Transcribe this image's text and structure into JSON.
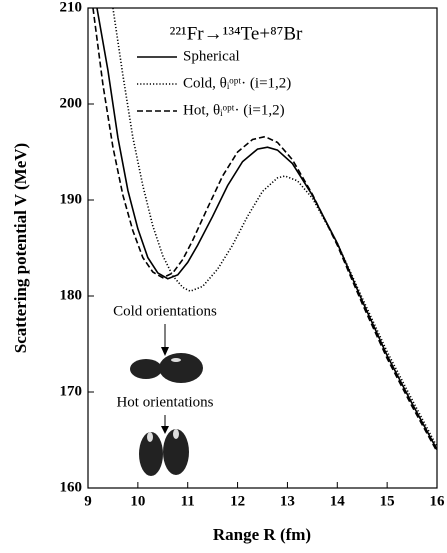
{
  "chart_data": {
    "type": "line",
    "title": "²²¹Fr→¹³⁴Te+⁸⁷Br",
    "xlabel": "Range R (fm)",
    "ylabel": "Scattering potential V (MeV)",
    "xlim": [
      9,
      16
    ],
    "xticks": [
      9,
      10,
      11,
      12,
      13,
      14,
      15,
      16
    ],
    "ylim": [
      160,
      210
    ],
    "yticks": [
      160,
      170,
      180,
      190,
      200,
      210
    ],
    "annotations": [
      "Cold orientations",
      "Hot orientations"
    ],
    "series": [
      {
        "name": "Spherical",
        "color": "#000000",
        "style": "solid",
        "x": [
          9.18,
          9.4,
          9.6,
          9.8,
          10.0,
          10.2,
          10.4,
          10.6,
          10.8,
          11.0,
          11.2,
          11.5,
          11.8,
          12.1,
          12.4,
          12.6,
          12.8,
          13.1,
          13.5,
          14.0,
          14.5,
          15.0,
          15.5,
          16.0
        ],
        "values": [
          210,
          203.5,
          196.5,
          191,
          187,
          184,
          182.4,
          181.8,
          182.2,
          183.5,
          185.3,
          188.3,
          191.5,
          194,
          195.3,
          195.5,
          195.2,
          193.8,
          190.5,
          185.5,
          179.5,
          173.8,
          168.8,
          164
        ]
      },
      {
        "name": "Cold, θᵢᵒᵖᵗ· (i=1,2)",
        "color": "#000000",
        "style": "dotted",
        "x": [
          9.5,
          9.7,
          9.9,
          10.1,
          10.3,
          10.5,
          10.7,
          10.9,
          11.05,
          11.3,
          11.6,
          11.9,
          12.2,
          12.5,
          12.8,
          12.95,
          13.2,
          13.5,
          14.0,
          14.5,
          15.0,
          15.5,
          16.0
        ],
        "values": [
          210,
          203,
          196.5,
          191.5,
          187.3,
          184.2,
          182.1,
          180.9,
          180.5,
          181,
          182.8,
          185.3,
          188.3,
          190.9,
          192.3,
          192.5,
          192,
          190.2,
          185.5,
          179.8,
          174.2,
          169.2,
          164.3
        ]
      },
      {
        "name": "Hot, θᵢᵒᵖᵗ· (i=1,2)",
        "color": "#000000",
        "style": "dashed",
        "x": [
          9.1,
          9.3,
          9.5,
          9.7,
          9.9,
          10.1,
          10.3,
          10.5,
          10.7,
          10.9,
          11.1,
          11.4,
          11.7,
          12.0,
          12.3,
          12.55,
          12.8,
          13.1,
          13.5,
          14.0,
          14.5,
          15.0,
          15.5,
          16.0
        ],
        "values": [
          210,
          202,
          195.5,
          190.5,
          186.8,
          184,
          182.5,
          181.9,
          182.4,
          183.8,
          185.8,
          189.2,
          192.5,
          195,
          196.3,
          196.6,
          196,
          194.2,
          190.6,
          185.3,
          179.2,
          173.5,
          168.5,
          163.8
        ]
      }
    ]
  }
}
